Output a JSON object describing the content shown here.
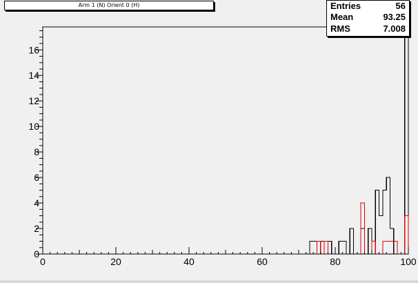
{
  "title": "Arm 1 (N) Orient 0 (H)",
  "stats": [
    {
      "label": "Entries",
      "value": "56"
    },
    {
      "label": "Mean",
      "value": "93.25"
    },
    {
      "label": "RMS",
      "value": "7.008"
    }
  ],
  "colors": {
    "series_black": "#000000",
    "series_red": "#dd0000",
    "frame": "#000000",
    "background": "#f0f0f0"
  },
  "chart_data": {
    "type": "histogram",
    "title": "Arm 1 (N) Orient 0 (H)",
    "xlim": [
      0,
      100
    ],
    "ylim": [
      0,
      17.8
    ],
    "bin_width": 1,
    "x_ticks": [
      0,
      20,
      40,
      60,
      80,
      100
    ],
    "y_ticks": [
      0,
      2,
      4,
      6,
      8,
      10,
      12,
      14,
      16
    ],
    "grid": false,
    "series": [
      {
        "color": "#000000",
        "bins": [
          [
            73,
            1
          ],
          [
            74,
            1
          ],
          [
            76,
            1
          ],
          [
            77,
            1
          ],
          [
            78,
            1
          ],
          [
            81,
            1
          ],
          [
            82,
            1
          ],
          [
            84,
            2
          ],
          [
            87,
            2
          ],
          [
            89,
            2
          ],
          [
            90,
            1
          ],
          [
            91,
            5
          ],
          [
            92,
            3
          ],
          [
            93,
            5
          ],
          [
            94,
            6
          ],
          [
            95,
            2
          ],
          [
            99,
            17
          ]
        ]
      },
      {
        "color": "#dd0000",
        "bins": [
          [
            75,
            1
          ],
          [
            77,
            1
          ],
          [
            87,
            4
          ],
          [
            90,
            1
          ],
          [
            93,
            1
          ],
          [
            94,
            1
          ],
          [
            95,
            1
          ],
          [
            96,
            1
          ],
          [
            99,
            3
          ]
        ]
      }
    ]
  }
}
